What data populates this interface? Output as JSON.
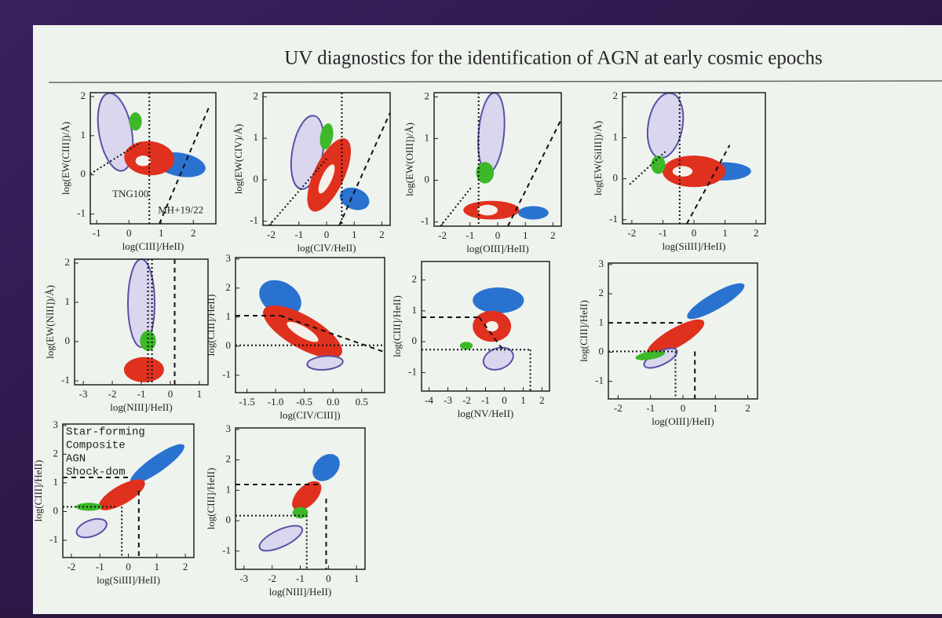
{
  "title": "UV diagnostics for the identification of AGN at early cosmic epochs",
  "chart_data": [
    {
      "type": "contour",
      "x_label": "log(CIII]/HeII)",
      "y_label": "log(EW(CIII])/Å)",
      "xlim": [
        -1.2,
        2.7
      ],
      "ylim": [
        -1.25,
        2.1
      ],
      "xticks": [
        -1,
        0,
        1,
        2
      ],
      "yticks": [
        -1,
        0,
        1,
        2
      ],
      "annotations": [
        "TNG100",
        "MH+19/22"
      ]
    },
    {
      "type": "contour",
      "x_label": "log(CIV/HeII)",
      "y_label": "log(EW(CIV)/Å)",
      "xlim": [
        -2.3,
        2.3
      ],
      "ylim": [
        -1.1,
        2.1
      ],
      "xticks": [
        -2,
        -1,
        0,
        1,
        2
      ],
      "yticks": [
        -1,
        0,
        1,
        2
      ]
    },
    {
      "type": "contour",
      "x_label": "log(OIII]/HeII)",
      "y_label": "log(EW(OIII])/Å)",
      "xlim": [
        -2.3,
        2.3
      ],
      "ylim": [
        -1.1,
        2.1
      ],
      "xticks": [
        -2,
        -1,
        0,
        1,
        2
      ],
      "yticks": [
        -1,
        0,
        1,
        2
      ]
    },
    {
      "type": "contour",
      "x_label": "log(SiIII]/HeII)",
      "y_label": "log(EW(SiIII])/Å)",
      "xlim": [
        -2.3,
        2.3
      ],
      "ylim": [
        -1.1,
        2.1
      ],
      "xticks": [
        -2,
        -1,
        0,
        1,
        2
      ],
      "yticks": [
        -1,
        0,
        1,
        2
      ]
    },
    {
      "type": "contour",
      "x_label": "log(NIII]/HeII)",
      "y_label": "log(EW(NIII])/Å)",
      "xlim": [
        -3.3,
        1.3
      ],
      "ylim": [
        -1.1,
        2.1
      ],
      "xticks": [
        -3,
        -2,
        -1,
        0,
        1
      ],
      "yticks": [
        -1,
        0,
        1,
        2
      ]
    },
    {
      "type": "contour",
      "x_label": "log(CIV/CIII])",
      "y_label": "log(CIII]/HeII)",
      "xlim": [
        -1.7,
        0.9
      ],
      "ylim": [
        -1.6,
        3.05
      ],
      "xticks": [
        -1.5,
        {
          "value": -1,
          "label": "-1.0"
        },
        -0.5,
        {
          "value": 0,
          "label": "0.0"
        },
        0.5
      ],
      "yticks": [
        -1,
        0,
        1,
        2,
        3
      ]
    },
    {
      "type": "contour",
      "x_label": "log(NV/HeII)",
      "y_label": "log(CIII]/HeII)",
      "xlim": [
        -4.4,
        2.4
      ],
      "ylim": [
        -1.6,
        2.6
      ],
      "xticks": [
        -4,
        -3,
        -2,
        -1,
        0,
        1,
        2
      ],
      "yticks": [
        -1,
        0,
        1,
        2
      ]
    },
    {
      "type": "contour",
      "x_label": "log(OIII]/HeII)",
      "y_label": "log(CIII]/HeII)",
      "xlim": [
        -2.3,
        2.3
      ],
      "ylim": [
        -1.6,
        3.05
      ],
      "xticks": [
        -2,
        -1,
        0,
        1,
        2
      ],
      "yticks": [
        -1,
        0,
        1,
        2,
        3
      ]
    },
    {
      "type": "contour",
      "x_label": "log(SiIII]/HeII)",
      "y_label": "log(CIII]/HeII)",
      "xlim": [
        -2.3,
        2.3
      ],
      "ylim": [
        -1.6,
        3.05
      ],
      "xticks": [
        -2,
        -1,
        0,
        1,
        2
      ],
      "yticks": [
        -1,
        0,
        1,
        2,
        3
      ],
      "legend": [
        {
          "name": "Star-forming",
          "color": "#2a72d0"
        },
        {
          "name": "Composite",
          "color": "#e0301e"
        },
        {
          "name": "AGN",
          "color": "#2f9e22"
        },
        {
          "name": "Shock-dom",
          "color": "#7f78c4"
        }
      ]
    },
    {
      "type": "contour",
      "x_label": "log(NIII]/HeII)",
      "y_label": "log(CIII]/HeII)",
      "xlim": [
        -3.3,
        1.3
      ],
      "ylim": [
        -1.6,
        3.05
      ],
      "xticks": [
        -3,
        -2,
        -1,
        0,
        1
      ],
      "yticks": [
        -1,
        0,
        1,
        2,
        3
      ]
    }
  ]
}
